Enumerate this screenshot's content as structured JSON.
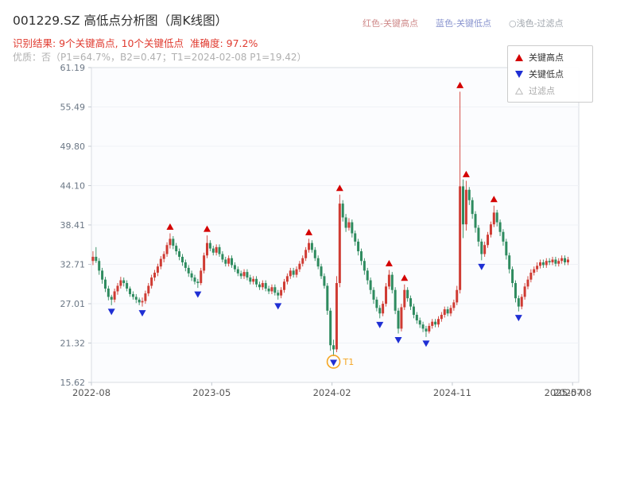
{
  "header": {
    "result_line": "识别结果: 9个关键高点, 10个关键低点  准确度: 97.2%",
    "quality_line": "优质：否（P1=64.7%，B2=0.47；T1=2024-02-08 P1=19.42）",
    "top_legend": [
      {
        "label": "红色-关键高点",
        "color": "#cf8a8a"
      },
      {
        "label": "蓝色-关键低点",
        "color": "#8a95cf"
      },
      {
        "label": "○浅色-过滤点",
        "color": "#a0a6ad"
      }
    ]
  },
  "chart_data": {
    "type": "candlestick",
    "title": "001229.SZ 高低点分析图（周K线图）",
    "ylim": [
      15.62,
      61.19
    ],
    "y_ticks": [
      "61.19",
      "55.49",
      "49.80",
      "44.10",
      "38.41",
      "32.71",
      "27.01",
      "21.32",
      "15.62"
    ],
    "x_ticks": [
      {
        "label": "2022-08",
        "week": 0
      },
      {
        "label": "2023-05",
        "week": 39
      },
      {
        "label": "2024-02",
        "week": 78
      },
      {
        "label": "2024-11",
        "week": 117
      },
      {
        "label": "2025-08",
        "week": 156
      }
    ],
    "x_tick_overlap": {
      "label": "2025-07",
      "week": 153
    },
    "weeks_total": 158,
    "legend": [
      {
        "label": "关键高点",
        "marker": "up-triangle"
      },
      {
        "label": "关键低点",
        "marker": "down-triangle"
      },
      {
        "label": "过滤点",
        "marker": "outline-triangle"
      }
    ],
    "colors": {
      "up_candle": "#cf3b33",
      "down_candle": "#2e8b5f",
      "key_high_marker": "#d40000",
      "key_low_marker": "#1f2fd4",
      "filtered_marker": "#bbbbbb",
      "t1_annotation": "#f5a623",
      "result_text": "#e03b30",
      "quality_text": "#b0b0b0",
      "legend_filtered_text": "#a8a8a8",
      "axis_text": "#6b7785",
      "x_axis_text": "#555555"
    },
    "candles": [
      [
        33.2,
        34.6,
        32.6,
        33.8
      ],
      [
        33.8,
        35.2,
        32.9,
        33.2
      ],
      [
        33.2,
        33.6,
        31.2,
        31.8
      ],
      [
        31.8,
        32.2,
        29.9,
        30.5
      ],
      [
        30.5,
        30.9,
        28.7,
        29.2
      ],
      [
        29.2,
        29.6,
        27.5,
        28.0
      ],
      [
        28.0,
        28.3,
        26.8,
        27.6
      ],
      [
        27.6,
        29.2,
        27.2,
        28.8
      ],
      [
        28.8,
        30.0,
        28.3,
        29.6
      ],
      [
        29.6,
        30.9,
        29.2,
        30.4
      ],
      [
        30.4,
        30.8,
        29.5,
        30.0
      ],
      [
        30.0,
        30.4,
        28.8,
        29.2
      ],
      [
        29.2,
        29.5,
        28.0,
        28.4
      ],
      [
        28.4,
        28.8,
        27.6,
        28.0
      ],
      [
        28.0,
        28.4,
        27.1,
        27.6
      ],
      [
        27.6,
        27.9,
        26.8,
        27.2
      ],
      [
        27.2,
        27.9,
        26.6,
        27.4
      ],
      [
        27.4,
        28.9,
        27.0,
        28.5
      ],
      [
        28.5,
        30.0,
        28.1,
        29.6
      ],
      [
        29.6,
        31.2,
        29.2,
        30.8
      ],
      [
        30.8,
        31.9,
        30.3,
        31.5
      ],
      [
        31.5,
        32.8,
        31.0,
        32.4
      ],
      [
        32.4,
        33.9,
        32.0,
        33.5
      ],
      [
        33.5,
        34.6,
        33.0,
        34.2
      ],
      [
        34.2,
        35.9,
        33.8,
        35.5
      ],
      [
        35.5,
        37.2,
        35.0,
        36.4
      ],
      [
        36.4,
        36.8,
        34.9,
        35.4
      ],
      [
        35.4,
        35.8,
        34.1,
        34.6
      ],
      [
        34.6,
        35.0,
        33.3,
        33.8
      ],
      [
        33.8,
        34.2,
        32.5,
        33.0
      ],
      [
        33.0,
        33.4,
        31.7,
        32.2
      ],
      [
        32.2,
        32.6,
        30.9,
        31.4
      ],
      [
        31.4,
        31.8,
        30.3,
        30.8
      ],
      [
        30.8,
        31.2,
        29.8,
        30.2
      ],
      [
        30.2,
        30.6,
        29.3,
        30.0
      ],
      [
        30.0,
        32.2,
        29.7,
        31.8
      ],
      [
        31.8,
        34.4,
        31.4,
        34.0
      ],
      [
        34.0,
        36.9,
        33.6,
        35.8
      ],
      [
        35.8,
        36.2,
        34.6,
        35.0
      ],
      [
        35.0,
        35.4,
        34.0,
        34.4
      ],
      [
        34.4,
        35.6,
        34.0,
        35.2
      ],
      [
        35.2,
        35.6,
        33.8,
        34.2
      ],
      [
        34.2,
        34.6,
        33.0,
        33.4
      ],
      [
        33.4,
        33.8,
        32.4,
        32.8
      ],
      [
        32.8,
        34.0,
        32.4,
        33.6
      ],
      [
        33.6,
        34.0,
        32.2,
        32.6
      ],
      [
        32.6,
        33.0,
        31.6,
        32.0
      ],
      [
        32.0,
        32.4,
        31.0,
        31.4
      ],
      [
        31.4,
        31.8,
        30.6,
        31.0
      ],
      [
        31.0,
        32.0,
        30.6,
        31.6
      ],
      [
        31.6,
        32.0,
        30.4,
        30.8
      ],
      [
        30.8,
        31.2,
        29.8,
        30.2
      ],
      [
        30.2,
        31.0,
        29.8,
        30.6
      ],
      [
        30.6,
        31.0,
        29.4,
        29.8
      ],
      [
        29.8,
        30.2,
        29.0,
        29.4
      ],
      [
        29.4,
        30.4,
        29.0,
        30.0
      ],
      [
        30.0,
        30.4,
        28.8,
        29.2
      ],
      [
        29.2,
        29.6,
        28.4,
        28.8
      ],
      [
        28.8,
        29.8,
        28.4,
        29.4
      ],
      [
        29.4,
        29.8,
        28.2,
        28.6
      ],
      [
        28.6,
        29.0,
        27.6,
        28.2
      ],
      [
        28.2,
        29.4,
        27.8,
        29.0
      ],
      [
        29.0,
        30.6,
        28.6,
        30.2
      ],
      [
        30.2,
        31.4,
        29.8,
        31.0
      ],
      [
        31.0,
        32.2,
        30.6,
        31.8
      ],
      [
        31.8,
        32.2,
        30.8,
        31.2
      ],
      [
        31.2,
        32.4,
        30.8,
        32.0
      ],
      [
        32.0,
        33.2,
        31.6,
        32.8
      ],
      [
        32.8,
        34.0,
        32.4,
        33.6
      ],
      [
        33.6,
        35.2,
        33.2,
        34.8
      ],
      [
        34.8,
        36.4,
        34.4,
        35.8
      ],
      [
        35.8,
        36.2,
        34.4,
        34.8
      ],
      [
        34.8,
        35.2,
        33.2,
        33.6
      ],
      [
        33.6,
        34.0,
        32.0,
        32.4
      ],
      [
        32.4,
        32.8,
        30.6,
        31.0
      ],
      [
        31.0,
        31.4,
        29.2,
        29.6
      ],
      [
        29.6,
        30.0,
        25.4,
        26.0
      ],
      [
        26.0,
        26.4,
        20.2,
        21.0
      ],
      [
        21.0,
        21.8,
        19.42,
        20.4
      ],
      [
        20.4,
        31.0,
        20.0,
        30.0
      ],
      [
        30.0,
        42.8,
        29.4,
        41.5
      ],
      [
        41.5,
        42.0,
        38.9,
        39.5
      ],
      [
        39.5,
        40.0,
        37.4,
        38.0
      ],
      [
        38.0,
        39.4,
        37.6,
        38.8
      ],
      [
        38.8,
        39.2,
        36.6,
        37.2
      ],
      [
        37.2,
        37.6,
        35.4,
        36.0
      ],
      [
        36.0,
        36.4,
        34.0,
        34.6
      ],
      [
        34.6,
        35.0,
        32.6,
        33.2
      ],
      [
        33.2,
        33.6,
        31.2,
        31.8
      ],
      [
        31.8,
        32.2,
        29.8,
        30.4
      ],
      [
        30.4,
        30.8,
        28.4,
        29.0
      ],
      [
        29.0,
        29.4,
        27.0,
        27.6
      ],
      [
        27.6,
        28.0,
        25.9,
        26.4
      ],
      [
        26.4,
        26.8,
        24.9,
        25.6
      ],
      [
        25.6,
        27.4,
        25.2,
        27.0
      ],
      [
        27.0,
        30.0,
        26.6,
        29.5
      ],
      [
        29.5,
        31.9,
        29.1,
        31.2
      ],
      [
        31.2,
        31.6,
        28.5,
        29.0
      ],
      [
        29.0,
        29.4,
        25.5,
        26.0
      ],
      [
        26.0,
        26.4,
        22.7,
        23.4
      ],
      [
        23.4,
        27.0,
        23.0,
        26.5
      ],
      [
        26.5,
        29.8,
        26.1,
        29.0
      ],
      [
        29.0,
        29.4,
        27.3,
        27.8
      ],
      [
        27.8,
        28.2,
        26.1,
        26.6
      ],
      [
        26.6,
        27.0,
        24.9,
        25.4
      ],
      [
        25.4,
        25.8,
        24.1,
        24.6
      ],
      [
        24.6,
        25.0,
        23.5,
        24.0
      ],
      [
        24.0,
        24.4,
        22.9,
        23.4
      ],
      [
        23.4,
        23.8,
        22.2,
        23.0
      ],
      [
        23.0,
        24.2,
        22.7,
        23.8
      ],
      [
        23.8,
        24.8,
        23.4,
        24.4
      ],
      [
        24.4,
        24.8,
        23.6,
        24.0
      ],
      [
        24.0,
        25.2,
        23.6,
        24.8
      ],
      [
        24.8,
        25.8,
        24.4,
        25.4
      ],
      [
        25.4,
        26.6,
        25.0,
        26.2
      ],
      [
        26.2,
        26.6,
        25.2,
        25.6
      ],
      [
        25.6,
        26.8,
        25.2,
        26.4
      ],
      [
        26.4,
        27.6,
        26.0,
        27.2
      ],
      [
        27.2,
        29.6,
        26.8,
        29.0
      ],
      [
        29.0,
        57.7,
        28.5,
        44.0
      ],
      [
        44.0,
        45.0,
        36.5,
        38.5
      ],
      [
        38.5,
        44.8,
        37.6,
        43.5
      ],
      [
        43.5,
        43.9,
        41.3,
        42.0
      ],
      [
        42.0,
        42.4,
        39.3,
        40.0
      ],
      [
        40.0,
        40.4,
        37.3,
        38.0
      ],
      [
        38.0,
        38.4,
        35.3,
        36.0
      ],
      [
        36.0,
        36.4,
        33.3,
        34.2
      ],
      [
        34.2,
        36.0,
        33.8,
        35.5
      ],
      [
        35.5,
        37.4,
        35.1,
        37.0
      ],
      [
        37.0,
        38.9,
        36.6,
        38.5
      ],
      [
        38.5,
        41.2,
        38.1,
        40.2
      ],
      [
        40.2,
        40.6,
        38.2,
        38.8
      ],
      [
        38.8,
        39.2,
        36.8,
        37.4
      ],
      [
        37.4,
        37.8,
        35.4,
        36.0
      ],
      [
        36.0,
        36.4,
        33.4,
        34.0
      ],
      [
        34.0,
        34.4,
        31.4,
        32.0
      ],
      [
        32.0,
        32.4,
        29.4,
        30.0
      ],
      [
        30.0,
        30.4,
        27.2,
        27.8
      ],
      [
        27.8,
        28.2,
        25.9,
        26.6
      ],
      [
        26.6,
        28.4,
        26.2,
        28.0
      ],
      [
        28.0,
        30.0,
        27.6,
        29.5
      ],
      [
        29.5,
        31.0,
        29.1,
        30.5
      ],
      [
        30.5,
        32.0,
        30.1,
        31.5
      ],
      [
        31.5,
        32.4,
        31.1,
        32.0
      ],
      [
        32.0,
        33.0,
        31.6,
        32.5
      ],
      [
        32.5,
        33.4,
        32.1,
        33.0
      ],
      [
        33.0,
        33.4,
        32.2,
        32.6
      ],
      [
        32.6,
        33.6,
        32.2,
        33.2
      ],
      [
        33.2,
        33.6,
        32.6,
        33.0
      ],
      [
        33.0,
        33.8,
        32.6,
        33.4
      ],
      [
        33.4,
        33.8,
        32.4,
        32.8
      ],
      [
        32.8,
        33.6,
        32.4,
        33.2
      ],
      [
        33.2,
        34.0,
        32.8,
        33.6
      ],
      [
        33.6,
        34.0,
        32.6,
        33.0
      ],
      [
        33.0,
        33.8,
        32.6,
        33.4
      ]
    ],
    "key_highs": [
      [
        25,
        37.2
      ],
      [
        37,
        36.9
      ],
      [
        70,
        36.4
      ],
      [
        80,
        42.8
      ],
      [
        96,
        31.9
      ],
      [
        101,
        29.8
      ],
      [
        119,
        57.7
      ],
      [
        121,
        44.8
      ],
      [
        130,
        41.2
      ]
    ],
    "key_lows": [
      [
        6,
        26.8
      ],
      [
        16,
        26.6
      ],
      [
        34,
        29.3
      ],
      [
        60,
        27.6
      ],
      [
        78,
        19.42
      ],
      [
        93,
        24.9
      ],
      [
        99,
        22.7
      ],
      [
        108,
        22.2
      ],
      [
        126,
        33.3
      ],
      [
        138,
        25.9
      ]
    ],
    "t1": {
      "index": 78,
      "value": 19.42,
      "label": "T1"
    }
  }
}
